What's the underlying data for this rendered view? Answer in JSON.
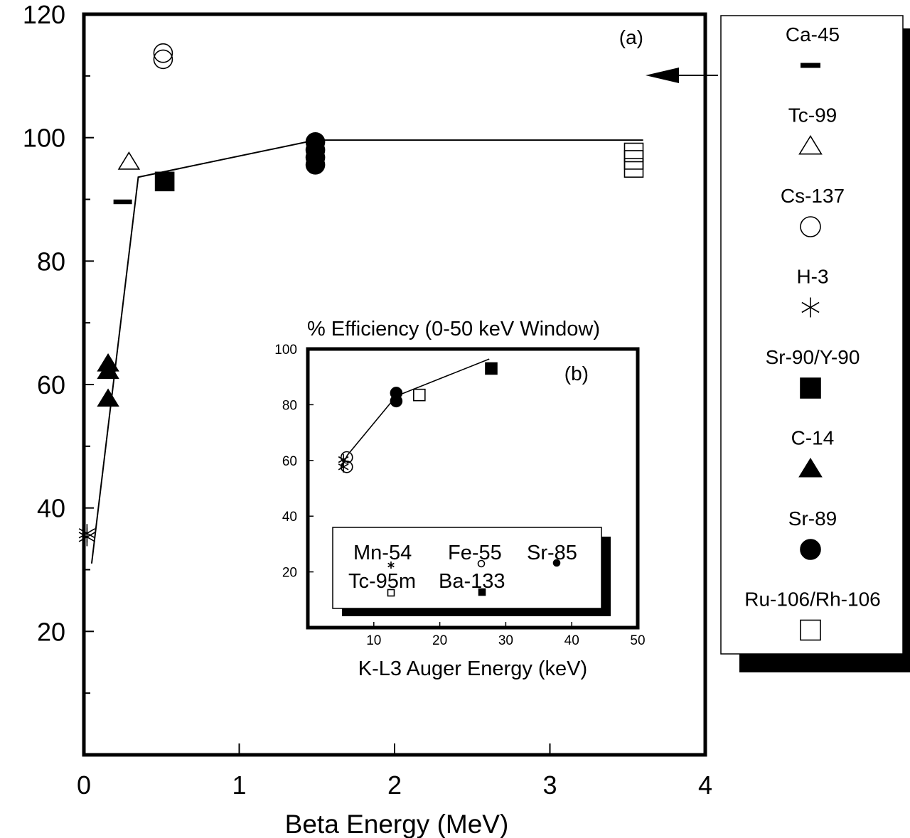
{
  "chart_data": [
    {
      "type": "scatter",
      "panel": "(a)",
      "xlabel": "Beta Energy (MeV)",
      "ylabel": "",
      "xlim": [
        0,
        4
      ],
      "ylim": [
        0,
        120
      ],
      "xticks": [
        0,
        1,
        2,
        3,
        4
      ],
      "yticks": [
        20,
        40,
        60,
        80,
        100,
        120
      ],
      "series": [
        {
          "name": "Ca-45",
          "marker": "bar",
          "points": [
            [
              0.25,
              89.6
            ]
          ]
        },
        {
          "name": "Tc-99",
          "marker": "triangle-open",
          "points": [
            [
              0.29,
              96.1
            ]
          ]
        },
        {
          "name": "Cs-137",
          "marker": "circle-open",
          "points": [
            [
              0.51,
              112.7
            ],
            [
              0.51,
              113.7
            ]
          ]
        },
        {
          "name": "H-3",
          "marker": "asterisk",
          "points": [
            [
              0.02,
              35.3
            ],
            [
              0.02,
              35.9
            ]
          ]
        },
        {
          "name": "Sr-90/Y-90",
          "marker": "square-filled",
          "points": [
            [
              0.52,
              92.9
            ]
          ]
        },
        {
          "name": "C-14",
          "marker": "triangle-filled",
          "points": [
            [
              0.156,
              62.2
            ],
            [
              0.156,
              63.4
            ],
            [
              0.156,
              57.7
            ]
          ]
        },
        {
          "name": "Sr-89",
          "marker": "circle-filled",
          "points": [
            [
              1.49,
              99.3
            ],
            [
              1.49,
              98.0
            ],
            [
              1.49,
              96.8
            ],
            [
              1.49,
              95.6
            ]
          ]
        },
        {
          "name": "Ru-106/Rh-106",
          "marker": "square-open",
          "points": [
            [
              3.54,
              97.6
            ],
            [
              3.54,
              96.4
            ],
            [
              3.54,
              95.1
            ]
          ]
        }
      ],
      "fit_line": {
        "x": [
          0.05,
          0.35,
          1.49,
          3.6
        ],
        "y": [
          31.0,
          93.6,
          99.6,
          99.6
        ]
      },
      "annotation": {
        "type": "arrow",
        "points_to_y": 110.1,
        "direction": "left"
      }
    },
    {
      "type": "scatter",
      "panel": "(b)",
      "title": "% Efficiency (0-50 keV Window)",
      "xlabel": "K-L3 Auger Energy (keV)",
      "ylabel": "",
      "xlim": [
        0,
        50
      ],
      "ylim": [
        0,
        100
      ],
      "xticks": [
        10,
        20,
        30,
        40,
        50
      ],
      "yticks": [
        20,
        40,
        60,
        80,
        100
      ],
      "series": [
        {
          "name": "Mn-54",
          "marker": "asterisk",
          "points": [
            [
              5.4,
              60.3
            ],
            [
              5.4,
              57.7
            ]
          ]
        },
        {
          "name": "Fe-55",
          "marker": "circle-open",
          "points": [
            [
              5.9,
              61.1
            ],
            [
              5.9,
              57.7
            ]
          ]
        },
        {
          "name": "Sr-85",
          "marker": "circle-filled",
          "points": [
            [
              13.4,
              84.2
            ],
            [
              13.4,
              81.3
            ]
          ]
        },
        {
          "name": "Tc-95m",
          "marker": "square-open",
          "points": [
            [
              16.9,
              83.5
            ]
          ]
        },
        {
          "name": "Ba-133",
          "marker": "square-filled",
          "points": [
            [
              27.8,
              93.0
            ]
          ]
        }
      ],
      "fit_line": {
        "x": [
          5.0,
          6.0,
          13.4,
          27.5
        ],
        "y": [
          57.3,
          61.9,
          83.1,
          96.4
        ]
      },
      "legend_entries": [
        "Mn-54",
        "Fe-55",
        "Sr-85",
        "Tc-95m",
        "Ba-133"
      ]
    }
  ],
  "legend": {
    "placement": "right",
    "items": [
      {
        "label": "Ca-45",
        "marker": "bar"
      },
      {
        "label": "Tc-99",
        "marker": "triangle-open"
      },
      {
        "label": "Cs-137",
        "marker": "circle-open"
      },
      {
        "label": "H-3",
        "marker": "asterisk"
      },
      {
        "label": "Sr-90/Y-90",
        "marker": "square-filled"
      },
      {
        "label": "C-14",
        "marker": "triangle-filled"
      },
      {
        "label": "Sr-89",
        "marker": "circle-filled"
      },
      {
        "label": "Ru-106/Rh-106",
        "marker": "square-open"
      }
    ]
  }
}
